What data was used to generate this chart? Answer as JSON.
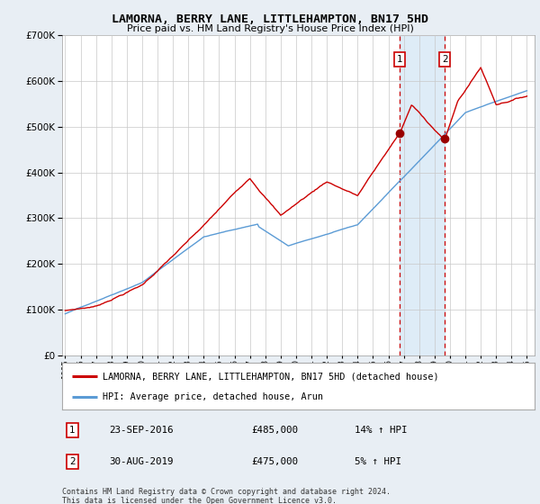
{
  "title": "LAMORNA, BERRY LANE, LITTLEHAMPTON, BN17 5HD",
  "subtitle": "Price paid vs. HM Land Registry's House Price Index (HPI)",
  "hpi_label": "HPI: Average price, detached house, Arun",
  "property_label": "LAMORNA, BERRY LANE, LITTLEHAMPTON, BN17 5HD (detached house)",
  "annotation1_date": "23-SEP-2016",
  "annotation1_price": "£485,000",
  "annotation1_hpi": "14% ↑ HPI",
  "annotation2_date": "30-AUG-2019",
  "annotation2_price": "£475,000",
  "annotation2_hpi": "5% ↑ HPI",
  "footer": "Contains HM Land Registry data © Crown copyright and database right 2024.\nThis data is licensed under the Open Government Licence v3.0.",
  "sale1_year": 2016.72,
  "sale1_price": 485000,
  "sale2_year": 2019.66,
  "sale2_price": 475000,
  "hpi_color": "#5b9bd5",
  "property_color": "#cc0000",
  "ylim_min": 0,
  "ylim_max": 700000,
  "xlim_min": 1994.8,
  "xlim_max": 2025.5,
  "bg_color": "#e8eef4",
  "plot_bg_color": "#ffffff",
  "shade_color": "#d0e4f5"
}
